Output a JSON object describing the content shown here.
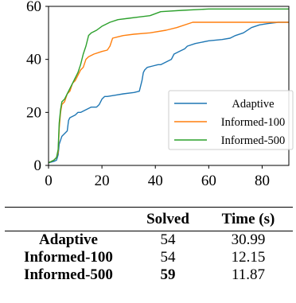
{
  "chart_data": {
    "type": "line",
    "xlim": [
      0,
      90
    ],
    "ylim": [
      0,
      60
    ],
    "xticks": [
      0,
      20,
      40,
      60,
      80
    ],
    "yticks": [
      0,
      20,
      40,
      60
    ],
    "legend_position": "right",
    "series": [
      {
        "name": "Adaptive",
        "color": "#1f77b4",
        "points": [
          [
            0,
            1
          ],
          [
            2,
            1.5
          ],
          [
            3,
            2
          ],
          [
            3.6,
            4
          ],
          [
            4,
            8
          ],
          [
            5,
            11
          ],
          [
            6,
            12
          ],
          [
            7,
            13
          ],
          [
            7.5,
            17
          ],
          [
            8,
            18
          ],
          [
            10,
            19
          ],
          [
            11,
            20
          ],
          [
            12,
            20
          ],
          [
            14,
            21
          ],
          [
            16,
            22
          ],
          [
            18,
            22
          ],
          [
            19,
            23
          ],
          [
            20,
            25
          ],
          [
            21,
            26
          ],
          [
            22,
            26
          ],
          [
            25,
            26.5
          ],
          [
            28,
            27
          ],
          [
            32,
            27.5
          ],
          [
            34,
            28
          ],
          [
            35,
            32
          ],
          [
            35.5,
            35
          ],
          [
            36,
            36
          ],
          [
            37,
            37
          ],
          [
            39,
            37.5
          ],
          [
            41,
            38
          ],
          [
            42,
            38
          ],
          [
            44,
            39
          ],
          [
            46,
            40
          ],
          [
            47,
            42
          ],
          [
            49,
            43
          ],
          [
            51,
            44
          ],
          [
            52,
            45
          ],
          [
            55,
            46
          ],
          [
            60,
            47
          ],
          [
            65,
            47.5
          ],
          [
            68,
            48
          ],
          [
            70,
            49
          ],
          [
            73,
            50
          ],
          [
            76,
            52
          ],
          [
            79,
            53
          ],
          [
            82,
            53.5
          ],
          [
            86,
            54
          ],
          [
            90,
            54
          ]
        ]
      },
      {
        "name": "Informed-100",
        "color": "#ff7f0e",
        "points": [
          [
            0,
            1
          ],
          [
            2,
            2
          ],
          [
            3,
            3
          ],
          [
            3.6,
            5
          ],
          [
            4,
            14
          ],
          [
            4.5,
            20
          ],
          [
            5,
            23
          ],
          [
            6,
            24
          ],
          [
            7,
            27
          ],
          [
            8,
            28
          ],
          [
            9,
            31
          ],
          [
            10,
            32
          ],
          [
            11,
            34
          ],
          [
            12,
            36
          ],
          [
            13,
            37
          ],
          [
            14,
            40
          ],
          [
            15,
            41
          ],
          [
            17,
            42
          ],
          [
            20,
            43
          ],
          [
            22,
            43.5
          ],
          [
            23,
            45
          ],
          [
            24,
            48
          ],
          [
            26,
            48.5
          ],
          [
            28,
            49
          ],
          [
            32,
            49.5
          ],
          [
            38,
            50
          ],
          [
            44,
            51
          ],
          [
            48,
            52
          ],
          [
            54,
            54
          ],
          [
            60,
            54
          ],
          [
            70,
            54
          ],
          [
            80,
            54
          ],
          [
            90,
            54
          ]
        ]
      },
      {
        "name": "Informed-500",
        "color": "#2ca02c",
        "points": [
          [
            0,
            1
          ],
          [
            2,
            2
          ],
          [
            3,
            3
          ],
          [
            3.6,
            6
          ],
          [
            4,
            16
          ],
          [
            4.5,
            21
          ],
          [
            5,
            24
          ],
          [
            6,
            25
          ],
          [
            7,
            27
          ],
          [
            8,
            29
          ],
          [
            9,
            31
          ],
          [
            10,
            33
          ],
          [
            11,
            35
          ],
          [
            12,
            38
          ],
          [
            13,
            42
          ],
          [
            14,
            45
          ],
          [
            15,
            49
          ],
          [
            16,
            50
          ],
          [
            18,
            51
          ],
          [
            20,
            52.5
          ],
          [
            23,
            54
          ],
          [
            26,
            55
          ],
          [
            30,
            55.5
          ],
          [
            34,
            56
          ],
          [
            38,
            56.5
          ],
          [
            42,
            58
          ],
          [
            50,
            58.5
          ],
          [
            60,
            59
          ],
          [
            70,
            59
          ],
          [
            80,
            59
          ],
          [
            90,
            59
          ]
        ]
      }
    ]
  },
  "table": {
    "headers": [
      "",
      "Solved",
      "Time (s)"
    ],
    "rows": [
      {
        "method": "Adaptive",
        "solved": "54",
        "time": "30.99",
        "solved_bold": false
      },
      {
        "method": "Informed-100",
        "solved": "54",
        "time": "12.15",
        "solved_bold": false
      },
      {
        "method": "Informed-500",
        "solved": "59",
        "time": "11.87",
        "solved_bold": true
      }
    ]
  }
}
